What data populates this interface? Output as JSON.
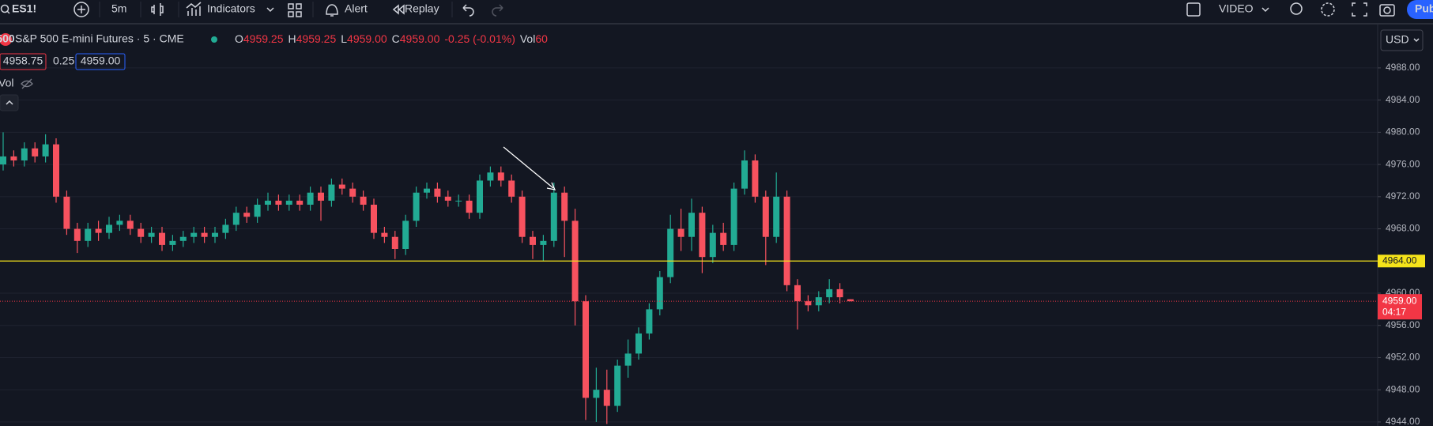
{
  "toolbar": {
    "symbol": "ES1!",
    "interval": "5m",
    "indicators": "Indicators",
    "alert": "Alert",
    "replay": "Replay",
    "video": "VIDEO",
    "publish": "Pub"
  },
  "legend": {
    "badge": "500",
    "title": "S&P 500 E-mini Futures · 5 · CME",
    "ohlc": [
      {
        "key": "O",
        "value": "4959.25"
      },
      {
        "key": "H",
        "value": "4959.25"
      },
      {
        "key": "L",
        "value": "4959.00"
      },
      {
        "key": "C",
        "value": "4959.00"
      }
    ],
    "change": "-0.25 (-0.01%)",
    "vol_key": "Vol",
    "vol_value": "60",
    "bid": "4958.75",
    "spread": "0.25",
    "ask": "4959.00",
    "volume_indicator": "Vol"
  },
  "currency": "USD",
  "chart_data": {
    "type": "candlestick",
    "up_color": "#22ab94",
    "down_color": "#f7525f",
    "grid": true,
    "ylim": [
      4943.5,
      4993
    ],
    "yticks": [
      {
        "value": 4944,
        "label": "4944.00"
      },
      {
        "value": 4948,
        "label": "4948.00"
      },
      {
        "value": 4952,
        "label": "4952.00"
      },
      {
        "value": 4956,
        "label": "4956.00"
      },
      {
        "value": 4960,
        "label": "4960.00"
      },
      {
        "value": 4964,
        "label": "4964.00"
      },
      {
        "value": 4968,
        "label": "4968.00"
      },
      {
        "value": 4972,
        "label": "4972.00"
      },
      {
        "value": 4976,
        "label": "4976.00"
      },
      {
        "value": 4980,
        "label": "4980.00"
      },
      {
        "value": 4984,
        "label": "4984.00"
      },
      {
        "value": 4988,
        "label": "4988.00"
      }
    ],
    "open": [
      4976,
      4977,
      4976.5,
      4978,
      4977,
      4978.5,
      4972,
      4968,
      4966.5,
      4968,
      4967.5,
      4968.5,
      4969,
      4968,
      4967,
      4967.5,
      4966,
      4966.5,
      4967,
      4967.5,
      4967,
      4967.5,
      4968.5,
      4970,
      4969.5,
      4971,
      4971.5,
      4971,
      4971.5,
      4971,
      4972.5,
      4971.5,
      4973.5,
      4973,
      4972,
      4971,
      4967.5,
      4967,
      4965.5,
      4969,
      4972.5,
      4973,
      4972,
      4971.5,
      4971.5,
      4970,
      4974,
      4975,
      4974,
      4972,
      4967,
      4966,
      4966.5,
      4972.5,
      4969,
      4959,
      4947,
      4948,
      4946,
      4951,
      4952.5,
      4955,
      4958,
      4962,
      4968,
      4967,
      4970,
      4964.5,
      4967.5,
      4966,
      4973,
      4976.5,
      4972,
      4967,
      4972,
      4961,
      4959,
      4958.5,
      4959.5,
      4960.5,
      4959.25
    ],
    "high": [
      4980,
      4977.75,
      4978.75,
      4978.75,
      4979.75,
      4979.25,
      4972.75,
      4968.75,
      4968.75,
      4969,
      4969.5,
      4969.75,
      4969.75,
      4968.75,
      4968.25,
      4968.25,
      4967.25,
      4967.75,
      4968.25,
      4968.25,
      4968.25,
      4969.25,
      4970.75,
      4970.75,
      4971.75,
      4972.5,
      4972.25,
      4972.25,
      4972.25,
      4973.25,
      4973.25,
      4974.25,
      4974.25,
      4973.75,
      4972.75,
      4971.75,
      4968.25,
      4967.75,
      4969.75,
      4973.25,
      4973.75,
      4973.75,
      4972.75,
      4972.25,
      4972.25,
      4974.75,
      4975.75,
      4975.75,
      4974.75,
      4972.75,
      4967.75,
      4967.25,
      4973.75,
      4973.25,
      4970.5,
      4959.75,
      4950.75,
      4950.5,
      4951.75,
      4954.25,
      4955.75,
      4958.75,
      4962.75,
      4969.75,
      4970.5,
      4971.75,
      4970.75,
      4968.5,
      4968.75,
      4973.75,
      4977.75,
      4977.25,
      4972.75,
      4975,
      4972.75,
      4961.75,
      4959.75,
      4960.25,
      4961.75,
      4961.25,
      4959.25
    ],
    "low": [
      4975.25,
      4975.75,
      4975.75,
      4976.25,
      4976.25,
      4971.25,
      4967.25,
      4965,
      4965.75,
      4966.5,
      4966.75,
      4967.75,
      4967.25,
      4966.25,
      4966.25,
      4965.25,
      4965.25,
      4965.75,
      4966.25,
      4966.25,
      4966.25,
      4966.75,
      4967.75,
      4968.75,
      4968.75,
      4970.25,
      4970.25,
      4970.25,
      4970.25,
      4970.25,
      4969,
      4970.75,
      4972.25,
      4971.25,
      4970.25,
      4966.75,
      4966.25,
      4964.25,
      4964.75,
      4968.25,
      4971.75,
      4971.25,
      4970.75,
      4970.75,
      4969.25,
      4969.25,
      4973.25,
      4973.25,
      4971.25,
      4966.25,
      4964.25,
      4964,
      4965.75,
      4964.5,
      4956,
      4944.25,
      4944,
      4943.75,
      4945.25,
      4949.5,
      4951.75,
      4954.25,
      4957.25,
      4961.25,
      4965.25,
      4965.25,
      4962.5,
      4963.75,
      4965.25,
      4965.25,
      4972.25,
      4971.25,
      4963.5,
      4966.25,
      4960.25,
      4955.5,
      4957.75,
      4957.75,
      4958.75,
      4958.75,
      4959
    ],
    "close": [
      4977,
      4976.5,
      4978,
      4977,
      4978.5,
      4972,
      4968,
      4966.5,
      4968,
      4967.5,
      4968.5,
      4969,
      4968,
      4967,
      4967.5,
      4966,
      4966.5,
      4967,
      4967.5,
      4967,
      4967.5,
      4968.5,
      4970,
      4969.5,
      4971,
      4971.5,
      4971,
      4971.5,
      4971,
      4972.5,
      4971.5,
      4973.5,
      4973,
      4972,
      4971,
      4967.5,
      4967,
      4965.5,
      4969,
      4972.5,
      4973,
      4972,
      4971.5,
      4971.5,
      4970,
      4974,
      4975,
      4974,
      4972,
      4967,
      4966,
      4966.5,
      4972.5,
      4969,
      4959,
      4947,
      4948,
      4946,
      4951,
      4952.5,
      4955,
      4958,
      4962,
      4968,
      4967,
      4970,
      4964.5,
      4967.5,
      4966,
      4973,
      4976.5,
      4972,
      4967,
      4972,
      4961,
      4959,
      4958.5,
      4959.5,
      4960.5,
      4959.5,
      4959
    ],
    "price_lines": [
      {
        "value": 4964,
        "label": "4964.00",
        "color": "#f5e31a"
      }
    ],
    "last_price": {
      "value": 4959,
      "label": "4959.00",
      "countdown": "04:17",
      "color": "#f23645"
    }
  }
}
